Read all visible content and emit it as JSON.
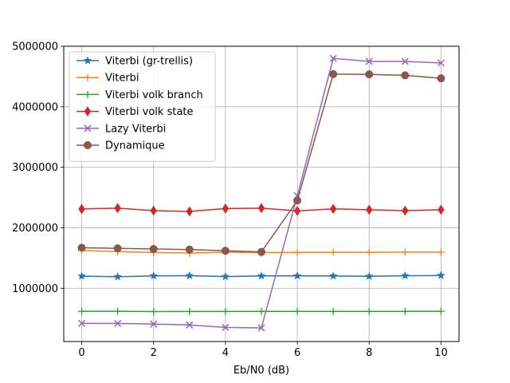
{
  "chart_data": {
    "type": "line",
    "title": "",
    "xlabel": "Eb/N0 (dB)",
    "ylabel": "",
    "xlim": [
      -0.5,
      10.5
    ],
    "ylim": [
      120000,
      5000000
    ],
    "x_ticks": [
      0,
      2,
      4,
      6,
      8,
      10
    ],
    "y_ticks": [
      1000000,
      2000000,
      3000000,
      4000000,
      5000000
    ],
    "y_tick_labels": [
      "1000000",
      "2000000",
      "3000000",
      "4000000",
      "5000000"
    ],
    "grid": true,
    "legend_position": "top-left",
    "x": [
      0,
      1,
      2,
      3,
      4,
      5,
      6,
      7,
      8,
      9,
      10
    ],
    "series": [
      {
        "name": "Viterbi (gr-trellis)",
        "color": "#1f77b4",
        "marker": "star",
        "values": [
          1200000,
          1190000,
          1205000,
          1208000,
          1193000,
          1205000,
          1205000,
          1203000,
          1198000,
          1207000,
          1212000
        ]
      },
      {
        "name": "Viterbi",
        "color": "#ff7f0e",
        "marker": "plus",
        "values": [
          1625000,
          1605000,
          1592000,
          1583000,
          1597000,
          1590000,
          1593000,
          1595000,
          1595000,
          1597000,
          1597000
        ]
      },
      {
        "name": "Viterbi volk branch",
        "color": "#2ca02c",
        "marker": "plus",
        "values": [
          620000,
          620000,
          615000,
          617000,
          617000,
          618000,
          618000,
          618000,
          618000,
          618000,
          620000
        ]
      },
      {
        "name": "Viterbi volk state",
        "color": "#d62728",
        "marker": "thin_diamond",
        "values": [
          2310000,
          2325000,
          2283000,
          2270000,
          2318000,
          2325000,
          2278000,
          2313000,
          2298000,
          2283000,
          2298000
        ]
      },
      {
        "name": "Lazy Viterbi",
        "color": "#9467bd",
        "marker": "x",
        "values": [
          420000,
          418000,
          408000,
          393000,
          353000,
          345000,
          2530000,
          4800000,
          4750000,
          4750000,
          4725000
        ]
      },
      {
        "name": "Dynamique",
        "color": "#8c564b",
        "marker": "circle",
        "values": [
          1670000,
          1660000,
          1650000,
          1640000,
          1620000,
          1600000,
          2450000,
          4540000,
          4535000,
          4520000,
          4470000
        ]
      }
    ]
  }
}
